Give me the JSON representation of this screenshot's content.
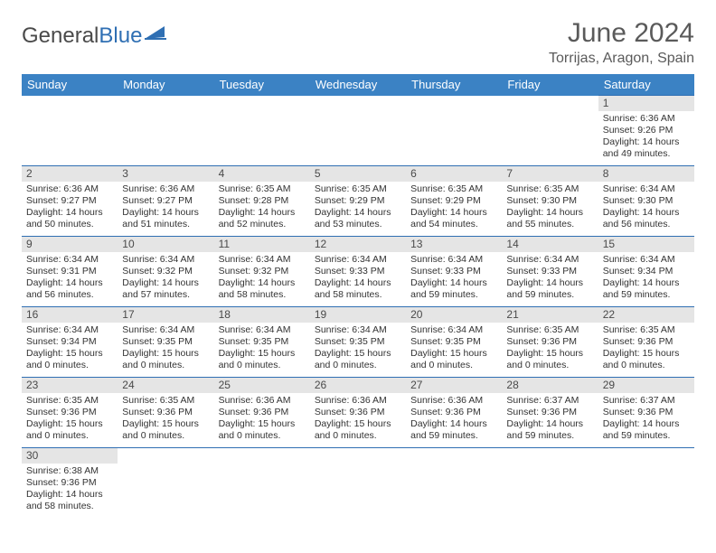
{
  "brand": {
    "part1": "General",
    "part2": "Blue"
  },
  "title": "June 2024",
  "location": "Torrijas, Aragon, Spain",
  "colors": {
    "header_bg": "#3b82c4",
    "header_text": "#ffffff",
    "border": "#2f6fb3",
    "daynum_bg": "#e5e5e5",
    "text": "#333333",
    "muted": "#5a5a5a",
    "brand_blue": "#2f6fb3",
    "background": "#ffffff"
  },
  "typography": {
    "title_fontsize": 30,
    "location_fontsize": 16,
    "header_fontsize": 13,
    "cell_fontsize": 10.5
  },
  "days_of_week": [
    "Sunday",
    "Monday",
    "Tuesday",
    "Wednesday",
    "Thursday",
    "Friday",
    "Saturday"
  ],
  "weeks": [
    [
      {
        "n": "",
        "lines": []
      },
      {
        "n": "",
        "lines": []
      },
      {
        "n": "",
        "lines": []
      },
      {
        "n": "",
        "lines": []
      },
      {
        "n": "",
        "lines": []
      },
      {
        "n": "",
        "lines": []
      },
      {
        "n": "1",
        "lines": [
          "Sunrise: 6:36 AM",
          "Sunset: 9:26 PM",
          "Daylight: 14 hours and 49 minutes."
        ]
      }
    ],
    [
      {
        "n": "2",
        "lines": [
          "Sunrise: 6:36 AM",
          "Sunset: 9:27 PM",
          "Daylight: 14 hours and 50 minutes."
        ]
      },
      {
        "n": "3",
        "lines": [
          "Sunrise: 6:36 AM",
          "Sunset: 9:27 PM",
          "Daylight: 14 hours and 51 minutes."
        ]
      },
      {
        "n": "4",
        "lines": [
          "Sunrise: 6:35 AM",
          "Sunset: 9:28 PM",
          "Daylight: 14 hours and 52 minutes."
        ]
      },
      {
        "n": "5",
        "lines": [
          "Sunrise: 6:35 AM",
          "Sunset: 9:29 PM",
          "Daylight: 14 hours and 53 minutes."
        ]
      },
      {
        "n": "6",
        "lines": [
          "Sunrise: 6:35 AM",
          "Sunset: 9:29 PM",
          "Daylight: 14 hours and 54 minutes."
        ]
      },
      {
        "n": "7",
        "lines": [
          "Sunrise: 6:35 AM",
          "Sunset: 9:30 PM",
          "Daylight: 14 hours and 55 minutes."
        ]
      },
      {
        "n": "8",
        "lines": [
          "Sunrise: 6:34 AM",
          "Sunset: 9:30 PM",
          "Daylight: 14 hours and 56 minutes."
        ]
      }
    ],
    [
      {
        "n": "9",
        "lines": [
          "Sunrise: 6:34 AM",
          "Sunset: 9:31 PM",
          "Daylight: 14 hours and 56 minutes."
        ]
      },
      {
        "n": "10",
        "lines": [
          "Sunrise: 6:34 AM",
          "Sunset: 9:32 PM",
          "Daylight: 14 hours and 57 minutes."
        ]
      },
      {
        "n": "11",
        "lines": [
          "Sunrise: 6:34 AM",
          "Sunset: 9:32 PM",
          "Daylight: 14 hours and 58 minutes."
        ]
      },
      {
        "n": "12",
        "lines": [
          "Sunrise: 6:34 AM",
          "Sunset: 9:33 PM",
          "Daylight: 14 hours and 58 minutes."
        ]
      },
      {
        "n": "13",
        "lines": [
          "Sunrise: 6:34 AM",
          "Sunset: 9:33 PM",
          "Daylight: 14 hours and 59 minutes."
        ]
      },
      {
        "n": "14",
        "lines": [
          "Sunrise: 6:34 AM",
          "Sunset: 9:33 PM",
          "Daylight: 14 hours and 59 minutes."
        ]
      },
      {
        "n": "15",
        "lines": [
          "Sunrise: 6:34 AM",
          "Sunset: 9:34 PM",
          "Daylight: 14 hours and 59 minutes."
        ]
      }
    ],
    [
      {
        "n": "16",
        "lines": [
          "Sunrise: 6:34 AM",
          "Sunset: 9:34 PM",
          "Daylight: 15 hours and 0 minutes."
        ]
      },
      {
        "n": "17",
        "lines": [
          "Sunrise: 6:34 AM",
          "Sunset: 9:35 PM",
          "Daylight: 15 hours and 0 minutes."
        ]
      },
      {
        "n": "18",
        "lines": [
          "Sunrise: 6:34 AM",
          "Sunset: 9:35 PM",
          "Daylight: 15 hours and 0 minutes."
        ]
      },
      {
        "n": "19",
        "lines": [
          "Sunrise: 6:34 AM",
          "Sunset: 9:35 PM",
          "Daylight: 15 hours and 0 minutes."
        ]
      },
      {
        "n": "20",
        "lines": [
          "Sunrise: 6:34 AM",
          "Sunset: 9:35 PM",
          "Daylight: 15 hours and 0 minutes."
        ]
      },
      {
        "n": "21",
        "lines": [
          "Sunrise: 6:35 AM",
          "Sunset: 9:36 PM",
          "Daylight: 15 hours and 0 minutes."
        ]
      },
      {
        "n": "22",
        "lines": [
          "Sunrise: 6:35 AM",
          "Sunset: 9:36 PM",
          "Daylight: 15 hours and 0 minutes."
        ]
      }
    ],
    [
      {
        "n": "23",
        "lines": [
          "Sunrise: 6:35 AM",
          "Sunset: 9:36 PM",
          "Daylight: 15 hours and 0 minutes."
        ]
      },
      {
        "n": "24",
        "lines": [
          "Sunrise: 6:35 AM",
          "Sunset: 9:36 PM",
          "Daylight: 15 hours and 0 minutes."
        ]
      },
      {
        "n": "25",
        "lines": [
          "Sunrise: 6:36 AM",
          "Sunset: 9:36 PM",
          "Daylight: 15 hours and 0 minutes."
        ]
      },
      {
        "n": "26",
        "lines": [
          "Sunrise: 6:36 AM",
          "Sunset: 9:36 PM",
          "Daylight: 15 hours and 0 minutes."
        ]
      },
      {
        "n": "27",
        "lines": [
          "Sunrise: 6:36 AM",
          "Sunset: 9:36 PM",
          "Daylight: 14 hours and 59 minutes."
        ]
      },
      {
        "n": "28",
        "lines": [
          "Sunrise: 6:37 AM",
          "Sunset: 9:36 PM",
          "Daylight: 14 hours and 59 minutes."
        ]
      },
      {
        "n": "29",
        "lines": [
          "Sunrise: 6:37 AM",
          "Sunset: 9:36 PM",
          "Daylight: 14 hours and 59 minutes."
        ]
      }
    ],
    [
      {
        "n": "30",
        "lines": [
          "Sunrise: 6:38 AM",
          "Sunset: 9:36 PM",
          "Daylight: 14 hours and 58 minutes."
        ]
      },
      {
        "n": "",
        "lines": []
      },
      {
        "n": "",
        "lines": []
      },
      {
        "n": "",
        "lines": []
      },
      {
        "n": "",
        "lines": []
      },
      {
        "n": "",
        "lines": []
      },
      {
        "n": "",
        "lines": []
      }
    ]
  ]
}
